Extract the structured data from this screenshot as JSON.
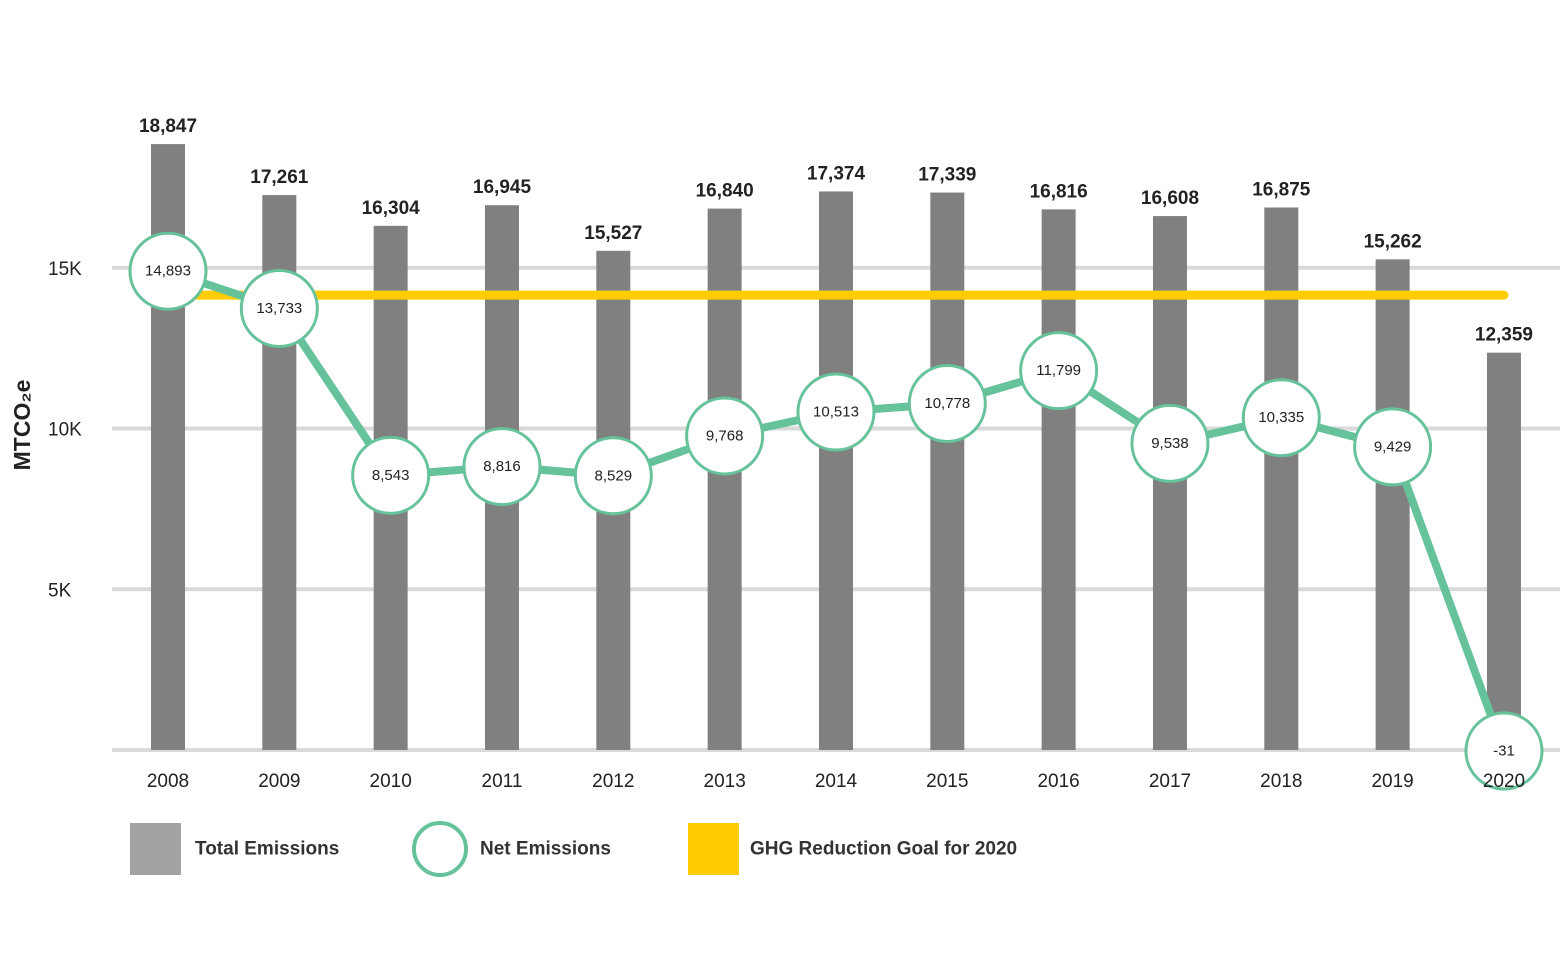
{
  "chart_data": {
    "type": "bar",
    "title": "",
    "xlabel": "",
    "ylabel": "MTCO₂e",
    "ylim": [
      0,
      20000
    ],
    "yticks": [
      {
        "value": 5000,
        "label": "5K"
      },
      {
        "value": 10000,
        "label": "10K"
      },
      {
        "value": 15000,
        "label": "15K"
      }
    ],
    "grid": true,
    "categories": [
      "2008",
      "2009",
      "2010",
      "2011",
      "2012",
      "2013",
      "2014",
      "2015",
      "2016",
      "2017",
      "2018",
      "2019",
      "2020"
    ],
    "series": [
      {
        "name": "Total Emissions",
        "type": "bar",
        "color": "#808080",
        "values": [
          18847,
          17261,
          16304,
          16945,
          15527,
          16840,
          17374,
          17339,
          16816,
          16608,
          16875,
          15262,
          12359
        ],
        "labels": [
          "18,847",
          "17,261",
          "16,304",
          "16,945",
          "15,527",
          "16,840",
          "17,374",
          "17,339",
          "16,816",
          "16,608",
          "16,875",
          "15,262",
          "12,359"
        ]
      },
      {
        "name": "Net Emissions",
        "type": "line",
        "color": "#66c29a",
        "values": [
          14893,
          13733,
          8543,
          8816,
          8529,
          9768,
          10513,
          10778,
          11799,
          9538,
          10335,
          9429,
          -31
        ],
        "labels": [
          "14,893",
          "13,733",
          "8,543",
          "8,816",
          "8,529",
          "9,768",
          "10,513",
          "10,778",
          "11,799",
          "9,538",
          "10,335",
          "9,429",
          "-31"
        ]
      },
      {
        "name": "GHG Reduction Goal for 2020",
        "type": "hline",
        "color": "#ffcc00",
        "value": 14150
      }
    ],
    "legend": {
      "position": "bottom-left",
      "entries": [
        "Total Emissions",
        "Net Emissions",
        "GHG Reduction Goal for 2020"
      ]
    }
  }
}
